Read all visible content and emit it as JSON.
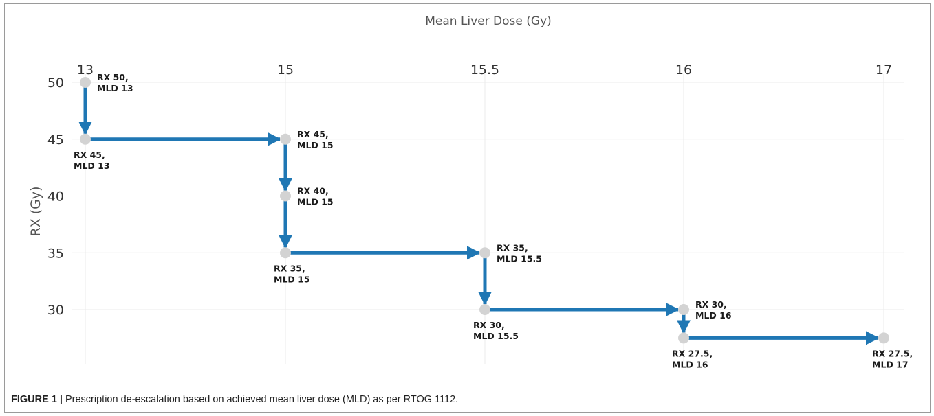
{
  "caption": {
    "figure": "FIGURE 1 |",
    "text": " Prescription de-escalation based on achieved mean liver dose (MLD) as per RTOG 1112."
  },
  "colors": {
    "arrow": "#1f77b4",
    "marker": "#d3d3d3",
    "grid": "#ebebeb",
    "frame": "#9a9a9a"
  },
  "chart_data": {
    "type": "scatter",
    "title": "",
    "xlabel": "Mean Liver Dose (Gy)",
    "ylabel": "RX (Gy)",
    "x_axis_position": "top",
    "x_axis_type": "category",
    "x_categories": [
      "13",
      "15",
      "15.5",
      "16",
      "17"
    ],
    "y_ticks": [
      50,
      45,
      40,
      35,
      30
    ],
    "ylim": [
      26,
      52
    ],
    "grid": true,
    "points": [
      {
        "x": "13",
        "y": 50,
        "label": [
          "RX 50,",
          "MLD 13"
        ],
        "label_pos": "right"
      },
      {
        "x": "13",
        "y": 45,
        "label": [
          "RX 45,",
          "MLD 13"
        ],
        "label_pos": "below"
      },
      {
        "x": "15",
        "y": 45,
        "label": [
          "RX 45,",
          "MLD 15"
        ],
        "label_pos": "right"
      },
      {
        "x": "15",
        "y": 40,
        "label": [
          "RX 40,",
          "MLD 15"
        ],
        "label_pos": "right"
      },
      {
        "x": "15",
        "y": 35,
        "label": [
          "RX 35,",
          "MLD 15"
        ],
        "label_pos": "below"
      },
      {
        "x": "15.5",
        "y": 35,
        "label": [
          "RX 35,",
          "MLD 15.5"
        ],
        "label_pos": "right"
      },
      {
        "x": "15.5",
        "y": 30,
        "label": [
          "RX 30,",
          "MLD 15.5"
        ],
        "label_pos": "below"
      },
      {
        "x": "16",
        "y": 30,
        "label": [
          "RX 30,",
          "MLD 16"
        ],
        "label_pos": "right"
      },
      {
        "x": "16",
        "y": 27.5,
        "label": [
          "RX 27.5,",
          "MLD 16"
        ],
        "label_pos": "below"
      },
      {
        "x": "17",
        "y": 27.5,
        "label": [
          "RX 27.5,",
          "MLD 17"
        ],
        "label_pos": "below"
      }
    ],
    "arrows": [
      {
        "from": 0,
        "to": 1
      },
      {
        "from": 1,
        "to": 2
      },
      {
        "from": 2,
        "to": 3
      },
      {
        "from": 3,
        "to": 4
      },
      {
        "from": 4,
        "to": 5
      },
      {
        "from": 5,
        "to": 6
      },
      {
        "from": 6,
        "to": 7
      },
      {
        "from": 7,
        "to": 8
      },
      {
        "from": 8,
        "to": 9
      }
    ]
  }
}
